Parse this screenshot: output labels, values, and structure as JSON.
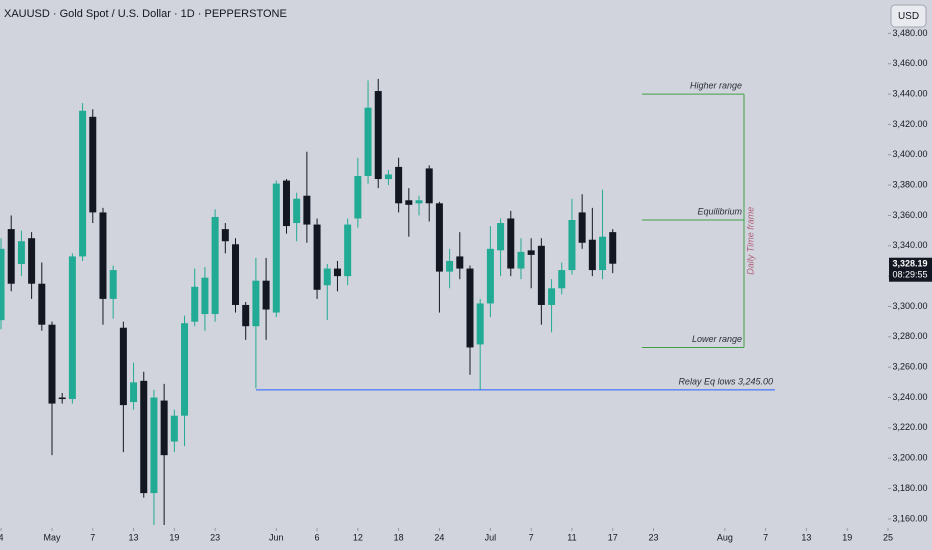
{
  "chart_data": {
    "type": "candlestick",
    "title": "XAUUSD · Gold Spot / U.S. Dollar · 1D · PEPPERSTONE",
    "currency": "USD",
    "candles": {
      "open": [
        3291,
        3351,
        3328,
        3345,
        3315,
        3288,
        3240,
        3239,
        3333,
        3425,
        3362,
        3305,
        3286,
        3237,
        3251,
        3177,
        3238,
        3211,
        3228,
        3290,
        3295,
        3295,
        3351,
        3341,
        3301,
        3287,
        3317,
        3296,
        3383,
        3355,
        3373,
        3354,
        3314,
        3325,
        3320,
        3358,
        3386,
        3442,
        3384,
        3392,
        3370,
        3368,
        3391,
        3368,
        3323,
        3333,
        3325,
        3275,
        3302,
        3337,
        3358,
        3325,
        3337,
        3340,
        3301,
        3312,
        3324,
        3362,
        3344,
        3324,
        3349
      ],
      "high": [
        3345,
        3360,
        3350,
        3349,
        3329,
        3290,
        3243,
        3335,
        3434,
        3430,
        3365,
        3327,
        3290,
        3263,
        3257,
        3245,
        3249,
        3232,
        3294,
        3325,
        3326,
        3364,
        3355,
        3345,
        3303,
        3332,
        3332,
        3383,
        3384,
        3375,
        3402,
        3358,
        3328,
        3330,
        3358,
        3398,
        3449,
        3450,
        3390,
        3398,
        3378,
        3373,
        3393,
        3369,
        3338,
        3349,
        3327,
        3305,
        3353,
        3358,
        3363,
        3345,
        3345,
        3345,
        3318,
        3329,
        3371,
        3374,
        3365,
        3377,
        3351
      ],
      "low": [
        3285,
        3310,
        3320,
        3305,
        3284,
        3202,
        3236,
        3236,
        3330,
        3355,
        3288,
        3292,
        3204,
        3232,
        3174,
        3156,
        3156,
        3204,
        3208,
        3287,
        3284,
        3290,
        3335,
        3296,
        3278,
        3246,
        3278,
        3293,
        3348,
        3343,
        3342,
        3305,
        3291,
        3310,
        3314,
        3352,
        3381,
        3378,
        3380,
        3362,
        3346,
        3360,
        3356,
        3296,
        3312,
        3318,
        3255,
        3245,
        3293,
        3320,
        3320,
        3318,
        3312,
        3288,
        3283,
        3308,
        3321,
        3338,
        3320,
        3318,
        3322
      ],
      "close": [
        3338,
        3315,
        3343,
        3315,
        3288,
        3236,
        3239,
        3333,
        3429,
        3362,
        3305,
        3324,
        3235,
        3250,
        3177,
        3240,
        3202,
        3228,
        3289,
        3313,
        3319,
        3359,
        3343,
        3301,
        3287,
        3317,
        3298,
        3381,
        3353,
        3371,
        3354,
        3311,
        3325,
        3320,
        3354,
        3386,
        3431,
        3384,
        3387,
        3368,
        3367,
        3370,
        3368,
        3323,
        3330,
        3325,
        3273,
        3302,
        3338,
        3355,
        3325,
        3336,
        3334,
        3301,
        3312,
        3324,
        3357,
        3342,
        3324,
        3346,
        3328.19
      ]
    },
    "colors": {
      "up": "#22ab94",
      "down": "#131722"
    },
    "xlim": [
      -0.1,
      87
    ],
    "xticks": [
      {
        "value": 0,
        "label": "4"
      },
      {
        "value": 5,
        "label": "May"
      },
      {
        "value": 9,
        "label": "7"
      },
      {
        "value": 13,
        "label": "13"
      },
      {
        "value": 17,
        "label": "19"
      },
      {
        "value": 21,
        "label": "23"
      },
      {
        "value": 27,
        "label": "Jun"
      },
      {
        "value": 31,
        "label": "6"
      },
      {
        "value": 35,
        "label": "12"
      },
      {
        "value": 39,
        "label": "18"
      },
      {
        "value": 43,
        "label": "24"
      },
      {
        "value": 48,
        "label": "Jul"
      },
      {
        "value": 52,
        "label": "7"
      },
      {
        "value": 56,
        "label": "11"
      },
      {
        "value": 60,
        "label": "17"
      },
      {
        "value": 64,
        "label": "23"
      },
      {
        "value": 71,
        "label": "Aug"
      },
      {
        "value": 75,
        "label": "7"
      },
      {
        "value": 79,
        "label": "13"
      },
      {
        "value": 83,
        "label": "19"
      },
      {
        "value": 87,
        "label": "25"
      }
    ],
    "ylim": [
      3154,
      3502
    ],
    "yticks": [
      {
        "value": 3160,
        "label": "3,160.00"
      },
      {
        "value": 3180,
        "label": "3,180.00"
      },
      {
        "value": 3200,
        "label": "3,200.00"
      },
      {
        "value": 3220,
        "label": "3,220.00"
      },
      {
        "value": 3240,
        "label": "3,240.00"
      },
      {
        "value": 3260,
        "label": "3,260.00"
      },
      {
        "value": 3280,
        "label": "3,280.00"
      },
      {
        "value": 3300,
        "label": "3,300.00"
      },
      {
        "value": 3320,
        "label": "3,320.00"
      },
      {
        "value": 3340,
        "label": "3,340.00"
      },
      {
        "value": 3360,
        "label": "3,360.00"
      },
      {
        "value": 3380,
        "label": "3,380.00"
      },
      {
        "value": 3400,
        "label": "3,400.00"
      },
      {
        "value": 3420,
        "label": "3,420.00"
      },
      {
        "value": 3440,
        "label": "3,440.00"
      },
      {
        "value": 3460,
        "label": "3,460.00"
      },
      {
        "value": 3480,
        "label": "3,480.00"
      }
    ],
    "last_price": {
      "value": 3328.19,
      "label": "3,328.19"
    },
    "countdown": "08:29:55",
    "levels": [
      {
        "label": "Higher range",
        "value": 3440,
        "color": "#43a047"
      },
      {
        "label": "Equilibrium",
        "value": 3357,
        "color": "#43a047"
      },
      {
        "label": "Lower range",
        "value": 3273,
        "color": "#43a047"
      },
      {
        "label": "Relay Eq lows 3,245.00",
        "value": 3245,
        "color": "#2962ff"
      }
    ],
    "side_label": "Daily Time frame"
  }
}
